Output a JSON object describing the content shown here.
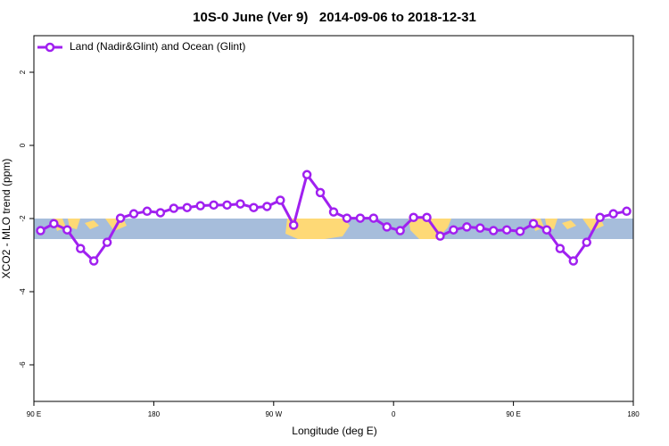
{
  "chart_data": {
    "type": "line",
    "title": "10S-0 June (Ver 9)   2014-09-06 to 2018-12-31",
    "x_label": "Longitude (deg E)",
    "y_label": "XCO2 - MLO trend (ppm)",
    "x": [
      95,
      105,
      115,
      125,
      135,
      145,
      155,
      165,
      175,
      185,
      195,
      205,
      215,
      225,
      235,
      245,
      255,
      265,
      275,
      285,
      295,
      305,
      315,
      325,
      335,
      345,
      355,
      365,
      375,
      385,
      395,
      405,
      415,
      425,
      435,
      445,
      455,
      465,
      475,
      485,
      495,
      505,
      515,
      525,
      535
    ],
    "series": [
      {
        "name": "Land (Nadir&Glint) and Ocean (Glint)",
        "color": "#a020f0",
        "values": [
          -2.33,
          -2.14,
          -2.31,
          -2.82,
          -3.16,
          -2.65,
          -1.99,
          -1.87,
          -1.8,
          -1.84,
          -1.72,
          -1.7,
          -1.65,
          -1.63,
          -1.63,
          -1.6,
          -1.7,
          -1.67,
          -1.5,
          -2.18,
          -0.8,
          -1.29,
          -1.82,
          -1.99,
          -1.99,
          -1.99,
          -2.23,
          -2.33,
          -1.97,
          -1.97,
          -2.48,
          -2.31,
          -2.23,
          -2.26,
          -2.33,
          -2.31,
          -2.35,
          -2.14,
          -2.31,
          -2.82,
          -3.16,
          -2.65,
          -1.97,
          -1.87,
          -1.8
        ]
      }
    ],
    "xlim": [
      90,
      540
    ],
    "xticks": [
      {
        "value": 90,
        "label": "90 E"
      },
      180,
      {
        "value": 270,
        "label": "90 W"
      },
      {
        "value": 360,
        "label": "0"
      },
      {
        "value": 450,
        "label": "90 E"
      },
      {
        "value": 540,
        "label": "180"
      }
    ],
    "ylim": [
      -7,
      3
    ],
    "yticks": [
      2,
      0,
      -2,
      -4,
      -6
    ],
    "legend": "top-left",
    "grid": false
  }
}
